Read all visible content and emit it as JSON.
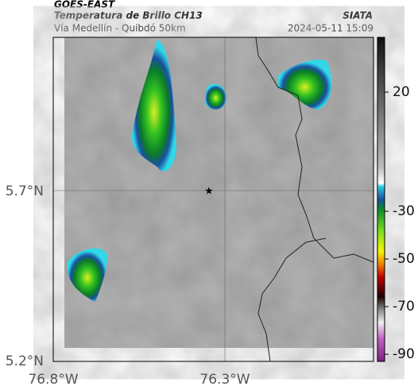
{
  "header": {
    "satellite": "GOES-EAST",
    "product": "Temperatura de Brillo CH13",
    "source": "SIATA",
    "location": "Vía Medellín - Quibdó 50km",
    "timestamp": "2024-05-11 15:09"
  },
  "map": {
    "lat_labels": [
      "5.7°N",
      "5.2°N"
    ],
    "lon_labels": [
      "76.8°W",
      "76.3°W"
    ]
  },
  "colorbar": {
    "lim": [
      -93,
      43
    ],
    "ticks": [
      20,
      -30,
      -50,
      -70,
      -90
    ]
  }
}
